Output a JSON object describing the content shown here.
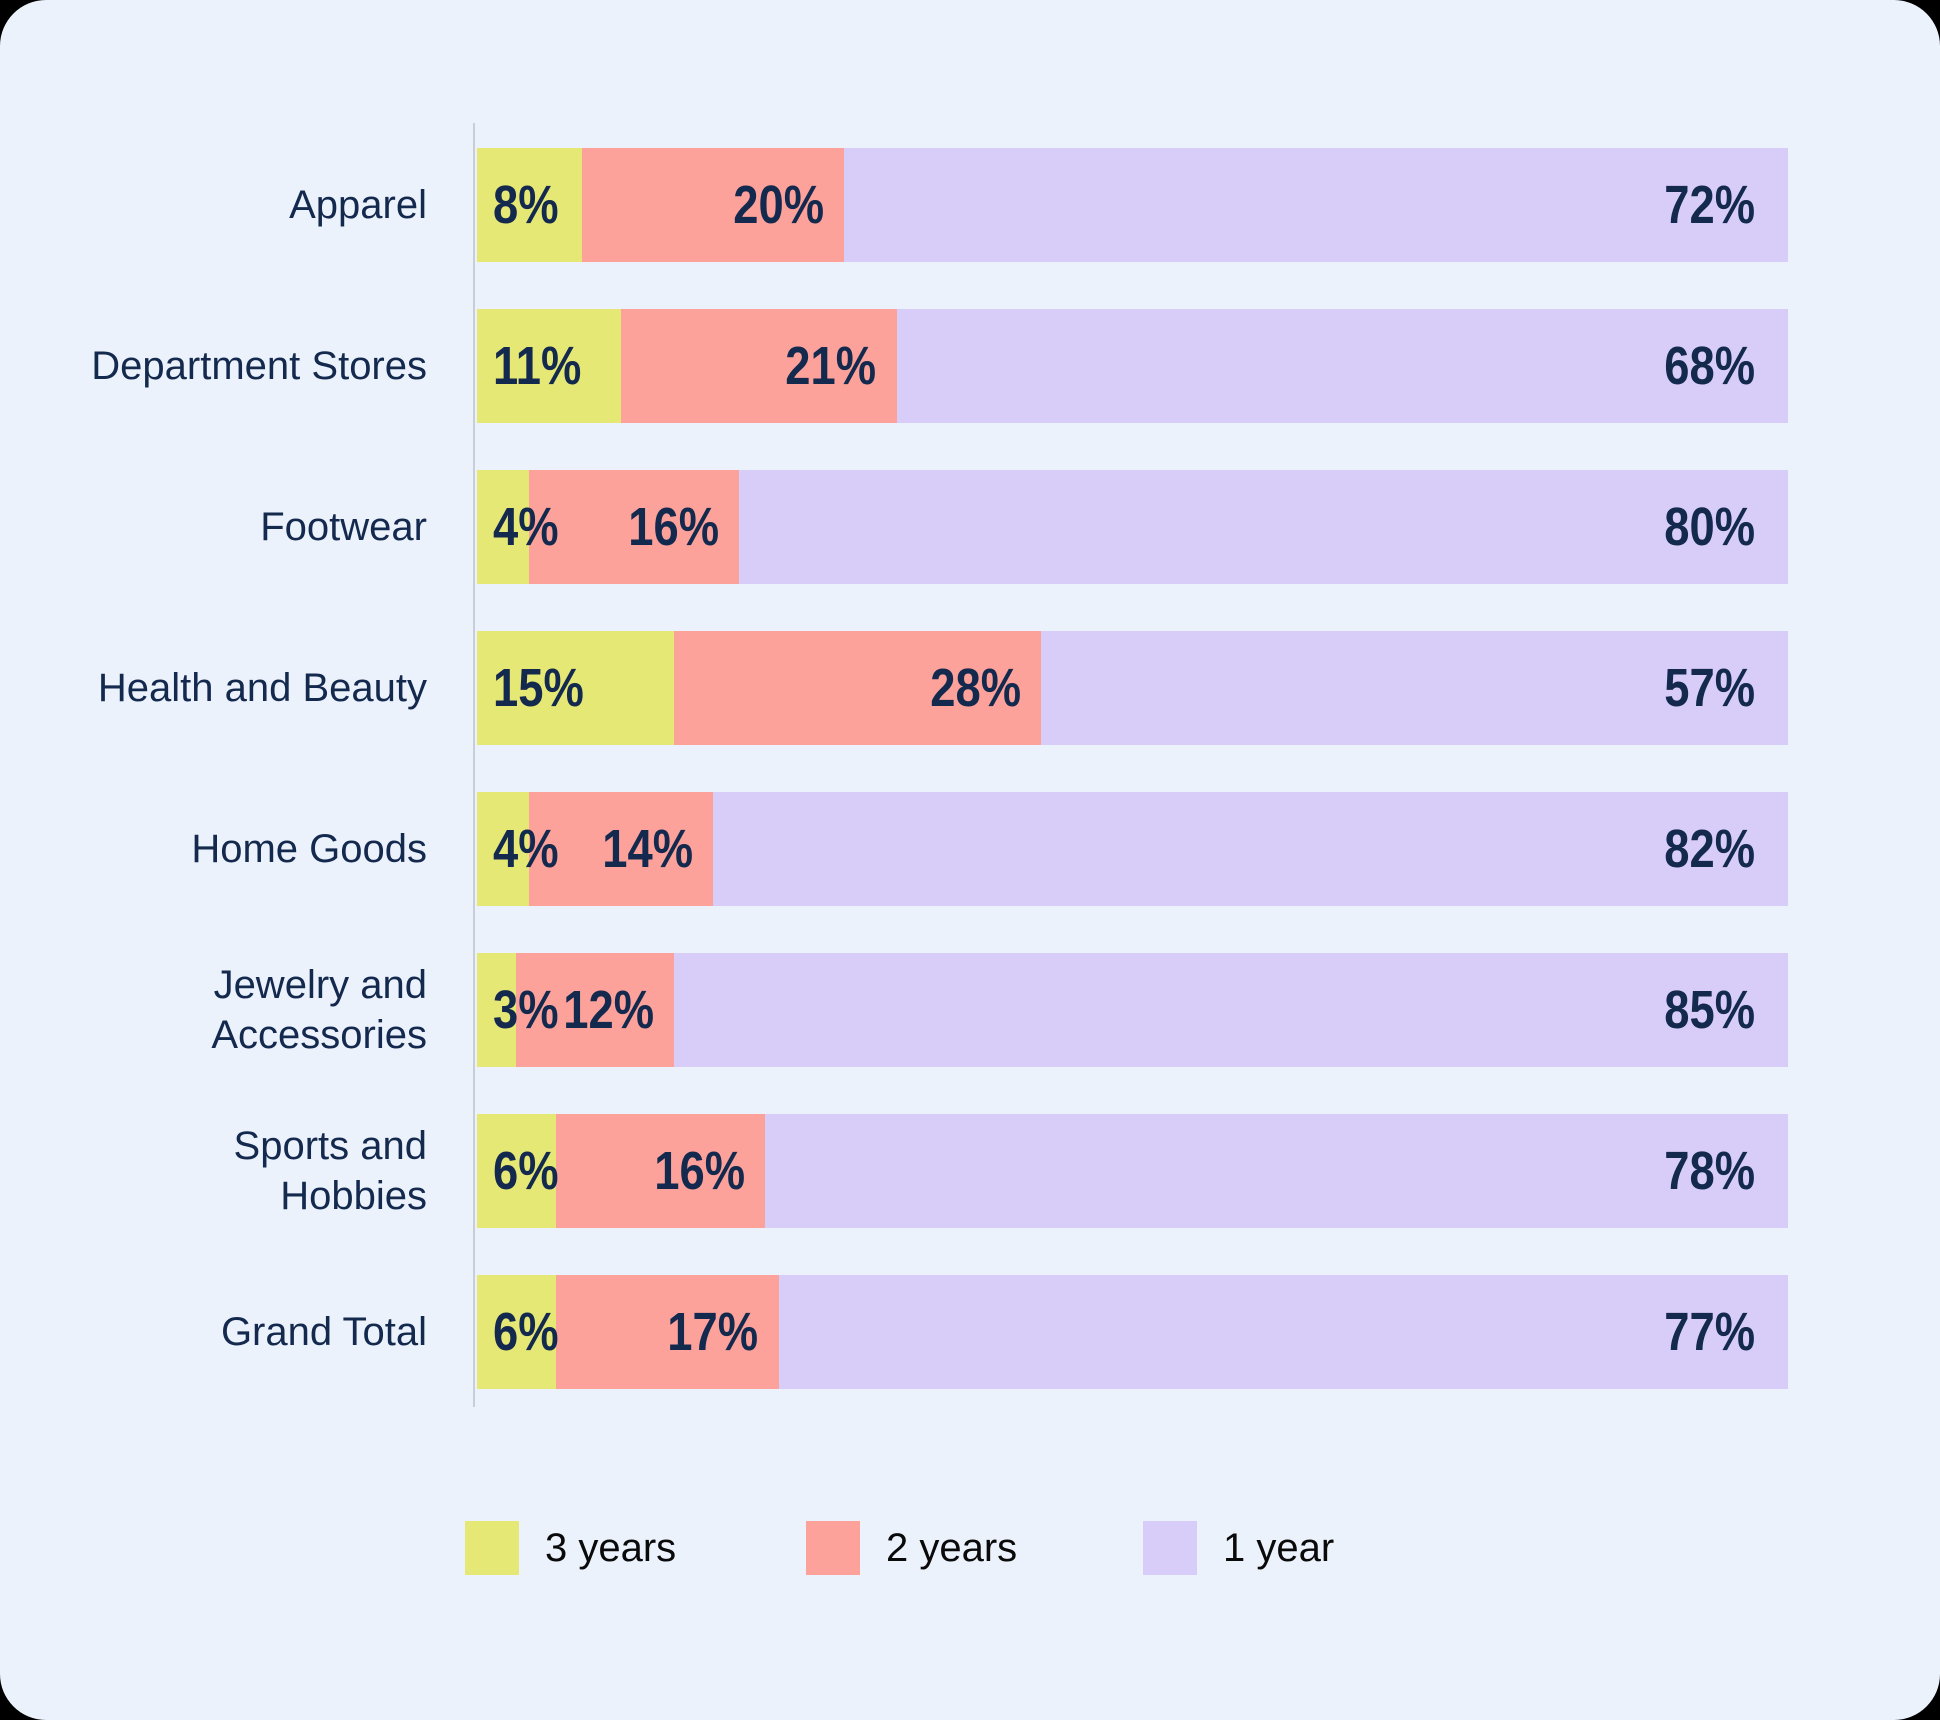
{
  "chart_data": {
    "type": "bar",
    "orientation": "horizontal",
    "stacked": true,
    "unit": "%",
    "title": "",
    "xlabel": "",
    "ylabel": "",
    "xlim": [
      0,
      100
    ],
    "grid": false,
    "legend_position": "bottom",
    "categories": [
      "Apparel",
      "Department Stores",
      "Footwear",
      "Health and Beauty",
      "Home Goods",
      "Jewelry and Accessories",
      "Sports and Hobbies",
      "Grand Total"
    ],
    "category_lines": [
      [
        "Apparel"
      ],
      [
        "Department Stores"
      ],
      [
        "Footwear"
      ],
      [
        "Health and Beauty"
      ],
      [
        "Home Goods"
      ],
      [
        "Jewelry and",
        "Accessories"
      ],
      [
        "Sports and",
        "Hobbies"
      ],
      [
        "Grand Total"
      ]
    ],
    "series": [
      {
        "name": "3 years",
        "color": "#E6E876",
        "values": [
          8,
          11,
          4,
          15,
          4,
          3,
          6,
          6
        ]
      },
      {
        "name": "2 years",
        "color": "#FDA29A",
        "values": [
          20,
          21,
          16,
          28,
          14,
          12,
          16,
          17
        ]
      },
      {
        "name": "1 year",
        "color": "#D8CDF8",
        "values": [
          72,
          68,
          80,
          57,
          82,
          85,
          78,
          77
        ]
      }
    ],
    "data_labels": [
      "8%",
      "20%",
      "72%",
      "11%",
      "21%",
      "68%",
      "4%",
      "16%",
      "80%",
      "15%",
      "28%",
      "57%",
      "4%",
      "14%",
      "82%",
      "3%",
      "12%",
      "85%",
      "6%",
      "16%",
      "78%",
      "6%",
      "17%",
      "77%"
    ]
  },
  "legend": {
    "items": [
      {
        "label": "3 years",
        "color": "#E6E876"
      },
      {
        "label": "2 years",
        "color": "#FDA29A"
      },
      {
        "label": "1 year",
        "color": "#D8CDF8"
      }
    ]
  },
  "colors": {
    "card_background": "#ECF2FB",
    "outside_background": "#000000",
    "axis_line": "#C8CDD7",
    "category_text": "#14294E",
    "data_label_text": "#14294E",
    "legend_text": "#0A0A0A"
  }
}
